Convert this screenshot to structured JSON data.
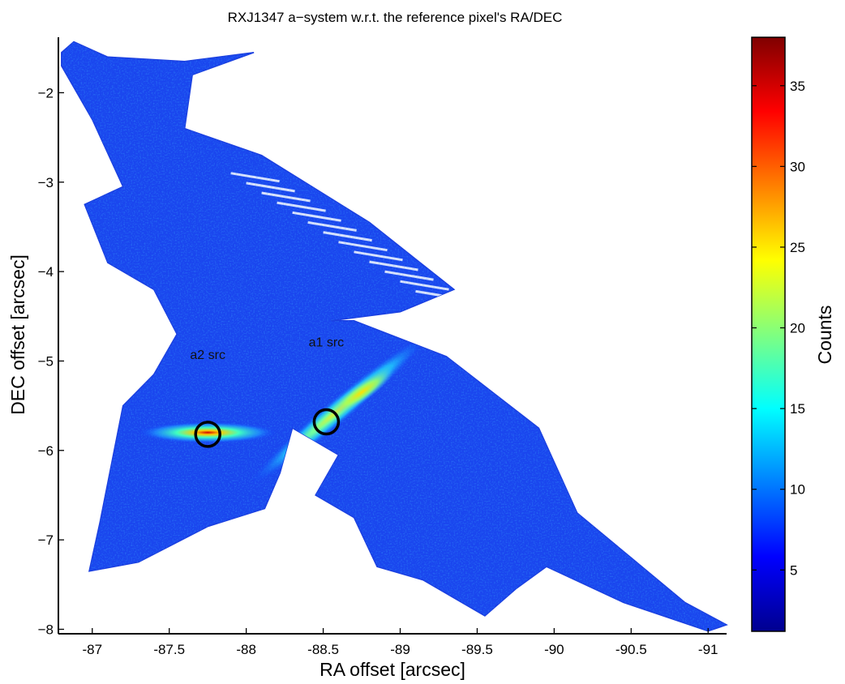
{
  "chart_data": {
    "type": "heatmap",
    "title": "RXJ1347 a−system w.r.t. the reference pixel's RA/DEC",
    "xlabel": "RA offset [arcsec]",
    "ylabel": "DEC offset [arcsec]",
    "xlim": [
      -86.78,
      -91.12
    ],
    "ylim": [
      -8.05,
      -1.38
    ],
    "x_reversed": true,
    "xticks": [
      -87,
      -87.5,
      -88,
      -88.5,
      -89,
      -89.5,
      -90,
      -90.5,
      -91
    ],
    "xtick_labels": [
      "-87",
      "-87.5",
      "-88",
      "-88.5",
      "-89",
      "-89.5",
      "-90",
      "-90.5",
      "-91"
    ],
    "yticks": [
      -2,
      -3,
      -4,
      -5,
      -6,
      -7,
      -8
    ],
    "ytick_labels": [
      "−2",
      "−3",
      "−4",
      "−5",
      "−6",
      "−7",
      "−8"
    ],
    "colormap": "jet",
    "colorbar": {
      "label": "Counts",
      "range": [
        1.2,
        38
      ],
      "ticks": [
        5,
        10,
        15,
        20,
        25,
        30,
        35
      ],
      "tick_labels": [
        "5",
        "10",
        "15",
        "20",
        "25",
        "30",
        "35"
      ]
    },
    "background_level": 5,
    "grid": false,
    "footprint_polygon_radec": [
      [
        -86.8,
        -1.55
      ],
      [
        -86.88,
        -1.43
      ],
      [
        -87.1,
        -1.6
      ],
      [
        -87.6,
        -1.65
      ],
      [
        -88.05,
        -1.55
      ],
      [
        -87.65,
        -1.8
      ],
      [
        -87.6,
        -2.4
      ],
      [
        -88.1,
        -2.7
      ],
      [
        -88.8,
        -3.45
      ],
      [
        -89.35,
        -4.2
      ],
      [
        -89.0,
        -4.45
      ],
      [
        -88.55,
        -4.55
      ],
      [
        -88.7,
        -4.55
      ],
      [
        -89.3,
        -4.95
      ],
      [
        -89.9,
        -5.75
      ],
      [
        -90.15,
        -6.7
      ],
      [
        -90.5,
        -7.2
      ],
      [
        -90.85,
        -7.7
      ],
      [
        -91.12,
        -7.95
      ],
      [
        -91.0,
        -8.02
      ],
      [
        -90.45,
        -7.7
      ],
      [
        -89.95,
        -7.3
      ],
      [
        -89.75,
        -7.55
      ],
      [
        -89.55,
        -7.85
      ],
      [
        -89.15,
        -7.45
      ],
      [
        -88.85,
        -7.3
      ],
      [
        -88.7,
        -6.75
      ],
      [
        -88.45,
        -6.5
      ],
      [
        -88.6,
        -6.05
      ],
      [
        -88.3,
        -5.75
      ],
      [
        -88.22,
        -6.25
      ],
      [
        -88.12,
        -6.65
      ],
      [
        -87.75,
        -6.85
      ],
      [
        -87.3,
        -7.25
      ],
      [
        -86.98,
        -7.35
      ],
      [
        -87.05,
        -6.8
      ],
      [
        -87.2,
        -5.5
      ],
      [
        -87.4,
        -5.15
      ],
      [
        -87.55,
        -4.7
      ],
      [
        -87.4,
        -4.2
      ],
      [
        -87.1,
        -3.9
      ],
      [
        -86.95,
        -3.25
      ],
      [
        -87.2,
        -3.05
      ],
      [
        -87.0,
        -2.3
      ],
      [
        -86.8,
        -1.7
      ]
    ],
    "emission_features": [
      {
        "ra": -87.75,
        "dec": -5.8,
        "semi_major": 0.45,
        "semi_minor": 0.12,
        "angle_deg": 0,
        "peak": 37,
        "color_level": "peak"
      },
      {
        "ra": -88.6,
        "dec": -5.55,
        "semi_major": 0.75,
        "semi_minor": 0.14,
        "angle_deg": -40,
        "peak": 26,
        "color_level": "secondary"
      },
      {
        "ra": -88.75,
        "dec": -5.35,
        "semi_major": 0.25,
        "semi_minor": 0.1,
        "angle_deg": -35,
        "peak": 25,
        "color_level": "knot"
      }
    ],
    "source_markers": [
      {
        "label": "a2 src",
        "ra": -87.75,
        "dec": -5.82
      },
      {
        "label": "a1 src",
        "ra": -88.52,
        "dec": -5.68
      }
    ]
  }
}
